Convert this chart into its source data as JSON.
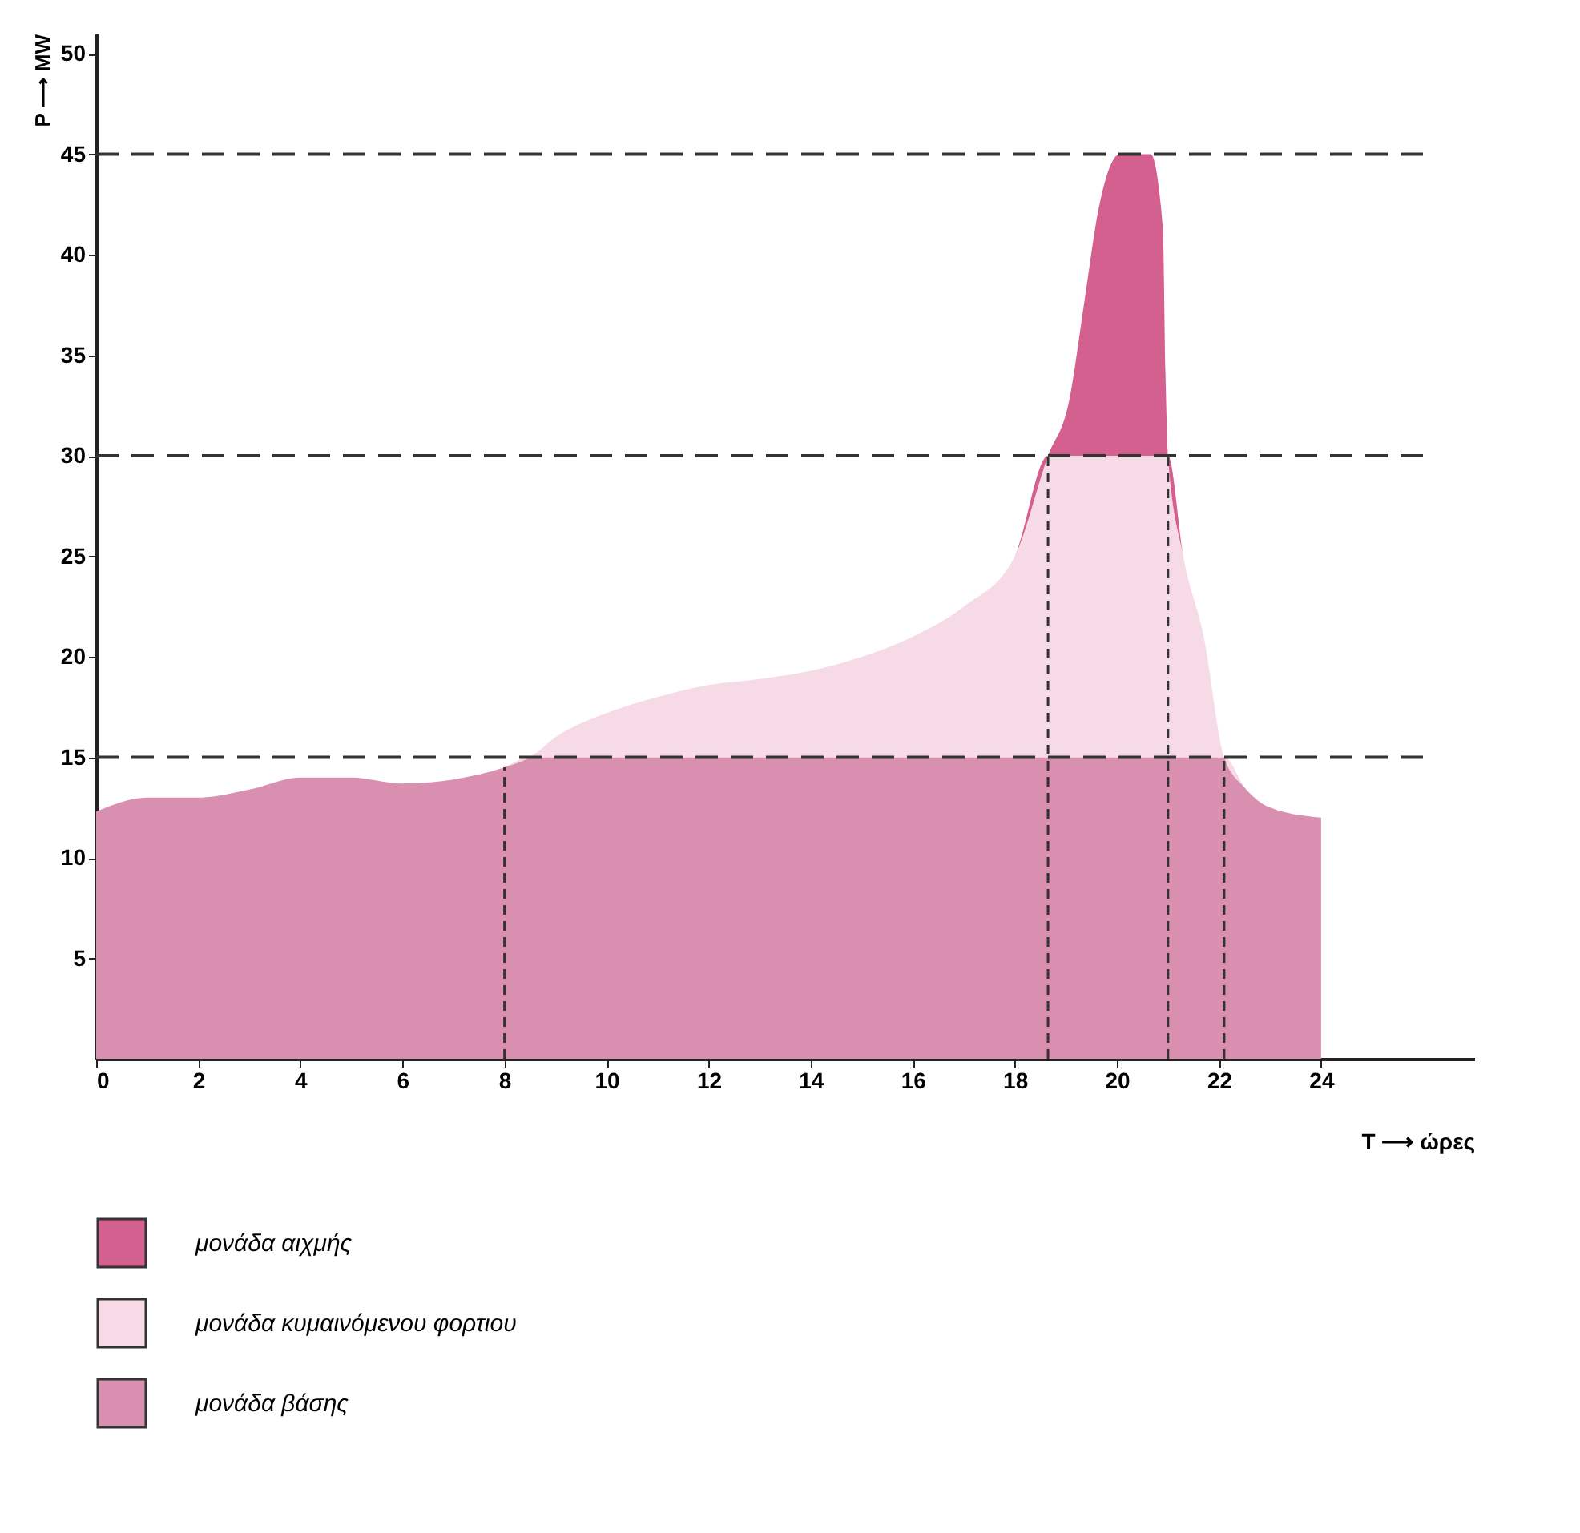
{
  "chart_data": {
    "type": "area",
    "stacked": true,
    "xlabel": "T ⟶ ώρες",
    "ylabel": "P ⟶ MW",
    "x": [
      0,
      1,
      2,
      3,
      4,
      5,
      6,
      7,
      8,
      8.5,
      9,
      10,
      11,
      12,
      13,
      14,
      15,
      16,
      17,
      18,
      18.65,
      19.06,
      19.37,
      19.65,
      20.06,
      20.66,
      20.9,
      20.95,
      21.0,
      21.3,
      21.7,
      22.1,
      22.5,
      23,
      24
    ],
    "series": [
      {
        "name": "μονάδα βάσης",
        "color": "#d98fb0",
        "values": [
          12.3,
          13,
          13,
          13.4,
          14,
          14,
          13.7,
          13.9,
          14.5,
          15,
          15,
          15,
          15,
          15,
          15,
          15,
          15,
          15,
          15,
          15,
          15,
          15,
          15,
          15,
          15,
          15,
          15,
          15,
          15,
          15,
          15,
          15,
          13.5,
          12.5,
          12
        ]
      },
      {
        "name": "μονάδα κυμαινόμενου φορτιου",
        "color": "#f6dbe6",
        "values": [
          0,
          0,
          0,
          0,
          0,
          0,
          0,
          0,
          0,
          0,
          1,
          2.2,
          3,
          3.6,
          3.9,
          4.3,
          5,
          6,
          7.5,
          10,
          15,
          15,
          15,
          15,
          15,
          15,
          15,
          15,
          15,
          10,
          6,
          0,
          0,
          0,
          0
        ]
      },
      {
        "name": "μονάδα αιχμής",
        "color": "#d4608f",
        "values": [
          0,
          0,
          0,
          0,
          0,
          0,
          0,
          0,
          0,
          0,
          0,
          0,
          0,
          0,
          0,
          0,
          0,
          0,
          0,
          0,
          0,
          2.7,
          7.8,
          12.4,
          15,
          15,
          11.3,
          4.2,
          0,
          0,
          0,
          0,
          0,
          0,
          0
        ]
      }
    ],
    "xlim": [
      0,
      27
    ],
    "xticks": [
      0,
      2,
      4,
      6,
      8,
      10,
      12,
      14,
      16,
      18,
      20,
      22,
      24
    ],
    "ylim": [
      0,
      51
    ],
    "yticks": [
      5,
      10,
      15,
      20,
      25,
      30,
      35,
      40,
      45,
      50
    ],
    "ref_lines": [
      {
        "axis": "y",
        "value": 15,
        "line_style": "dashed"
      },
      {
        "axis": "y",
        "value": 30,
        "line_style": "dashed"
      },
      {
        "axis": "y",
        "value": 45,
        "line_style": "dashed"
      },
      {
        "axis": "x",
        "value": 8,
        "line_style": "dashed"
      },
      {
        "axis": "x",
        "value": 18.65,
        "line_style": "dashed"
      },
      {
        "axis": "x",
        "value": 21.0,
        "line_style": "dashed"
      },
      {
        "axis": "x",
        "value": 22.1,
        "line_style": "dashed"
      }
    ],
    "grid": false,
    "legend": "bottom"
  }
}
